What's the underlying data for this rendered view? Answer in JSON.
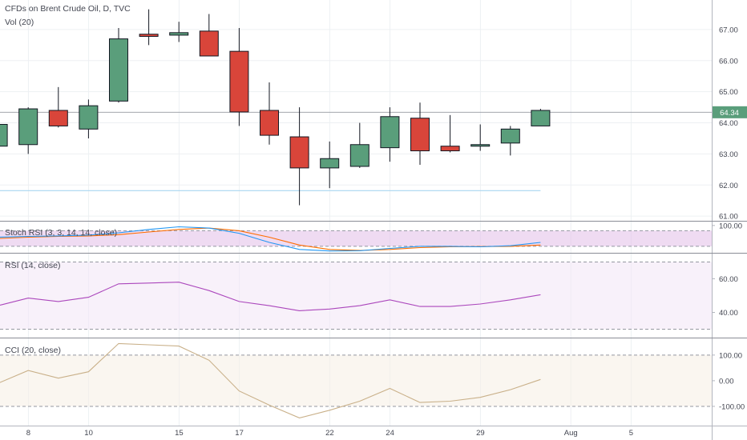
{
  "header": {
    "title": "CFDs on Brent Crude Oil, D, TVC",
    "volume_label": "Vol (20)"
  },
  "indicators": {
    "stoch_rsi": {
      "label": "Stoch RSI (3, 3, 14, 14, close)",
      "k_color": "#2196f3",
      "d_color": "#ff6d00",
      "bg_color": "#e1bee7"
    },
    "rsi": {
      "label": "RSI (14, close)",
      "line_color": "#ab47bc",
      "bg_color": "#f3e5f5"
    },
    "cci": {
      "label": "CCI (20, close)",
      "line_color": "#c9b089",
      "bg_color": "#f5efe4"
    }
  },
  "colors": {
    "up": "#5a9e7b",
    "down": "#d9453a",
    "wick": "#131722",
    "grid": "#edf0f3",
    "last_price_line": "#9598a1",
    "support_line": "#a8d6f0"
  },
  "chart_data": [
    {
      "type": "candlestick",
      "series_name": "",
      "x_ticks": [
        "8",
        "10",
        "15",
        "17",
        "22",
        "24",
        "29",
        "Aug",
        "5"
      ],
      "y_ticks": [
        "61.00",
        "62.00",
        "63.00",
        "64.00",
        "65.00",
        "66.00",
        "67.00"
      ],
      "ylim": [
        60.85,
        67.95
      ],
      "last_price": 64.34,
      "last_price_label": "64.34",
      "support_level": 61.82,
      "candles": [
        {
          "o": 63.25,
          "h": 64.0,
          "l": 62.95,
          "c": 63.95
        },
        {
          "o": 63.3,
          "h": 64.5,
          "l": 63.0,
          "c": 64.45
        },
        {
          "o": 64.4,
          "h": 65.15,
          "l": 63.85,
          "c": 63.9
        },
        {
          "o": 63.8,
          "h": 64.75,
          "l": 63.5,
          "c": 64.55
        },
        {
          "o": 64.7,
          "h": 67.05,
          "l": 64.65,
          "c": 66.7
        },
        {
          "o": 66.85,
          "h": 67.65,
          "l": 66.5,
          "c": 66.78
        },
        {
          "o": 66.82,
          "h": 67.25,
          "l": 66.6,
          "c": 66.9
        },
        {
          "o": 66.95,
          "h": 67.5,
          "l": 66.15,
          "c": 66.15
        },
        {
          "o": 66.3,
          "h": 67.05,
          "l": 63.9,
          "c": 64.35
        },
        {
          "o": 64.4,
          "h": 65.3,
          "l": 63.3,
          "c": 63.6
        },
        {
          "o": 63.55,
          "h": 64.5,
          "l": 61.35,
          "c": 62.55
        },
        {
          "o": 62.55,
          "h": 63.4,
          "l": 61.9,
          "c": 62.85
        },
        {
          "o": 62.6,
          "h": 64.0,
          "l": 62.55,
          "c": 63.3
        },
        {
          "o": 63.2,
          "h": 64.5,
          "l": 62.75,
          "c": 64.2
        },
        {
          "o": 64.15,
          "h": 64.65,
          "l": 62.65,
          "c": 63.1
        },
        {
          "o": 63.25,
          "h": 64.25,
          "l": 63.05,
          "c": 63.1
        },
        {
          "o": 63.25,
          "h": 63.95,
          "l": 63.1,
          "c": 63.3
        },
        {
          "o": 63.35,
          "h": 63.9,
          "l": 62.95,
          "c": 63.8
        },
        {
          "o": 63.9,
          "h": 64.45,
          "l": 63.9,
          "c": 64.4
        }
      ]
    },
    {
      "type": "line",
      "name": "Stoch RSI",
      "y_ticks": [
        "100.00"
      ],
      "ylim": [
        -5,
        115
      ],
      "bands": [
        80,
        20
      ],
      "series": [
        {
          "name": "",
          "values": [
            55,
            58,
            60,
            63,
            72,
            85,
            95,
            90,
            70,
            35,
            8,
            2,
            3,
            12,
            20,
            20,
            18,
            22,
            35
          ]
        },
        {
          "name": "",
          "values": [
            50,
            55,
            58,
            60,
            65,
            75,
            85,
            90,
            80,
            55,
            25,
            8,
            4,
            8,
            15,
            18,
            19,
            20,
            25
          ]
        }
      ]
    },
    {
      "type": "line",
      "name": "RSI",
      "y_ticks": [
        "60.00",
        "40.00"
      ],
      "ylim": [
        25,
        75
      ],
      "bands": [
        70,
        30
      ],
      "series": [
        {
          "name": "",
          "values": [
            44,
            48.5,
            46.5,
            49,
            57,
            57.5,
            58,
            53,
            46.5,
            44,
            41,
            42,
            44,
            47.5,
            43.5,
            43.5,
            45,
            47.5,
            50.5
          ]
        }
      ]
    },
    {
      "type": "line",
      "name": "CCI",
      "y_ticks": [
        "100.00",
        "0.00",
        "-100.00"
      ],
      "ylim": [
        -175,
        165
      ],
      "bands": [
        100,
        -100
      ],
      "series": [
        {
          "name": "",
          "values": [
            -10,
            40,
            10,
            35,
            145,
            140,
            135,
            80,
            -40,
            -95,
            -145,
            -115,
            -80,
            -30,
            -85,
            -80,
            -65,
            -35,
            5
          ]
        }
      ]
    }
  ]
}
